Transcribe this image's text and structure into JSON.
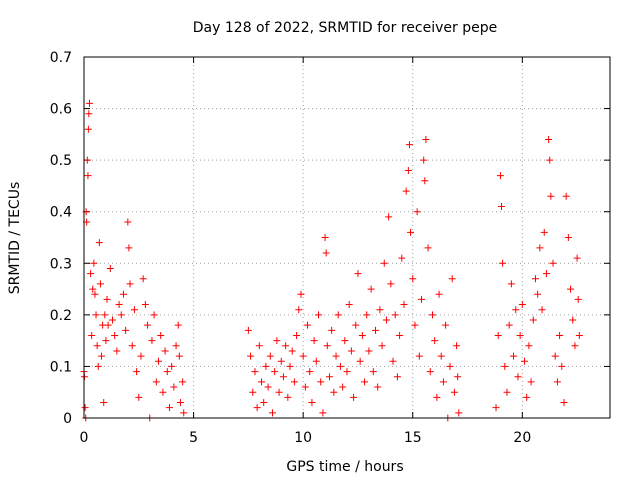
{
  "chart_data": {
    "type": "scatter",
    "title": "Day 128 of 2022, SRMTID for receiver pepe",
    "xlabel": "GPS time / hours",
    "ylabel": "SRMTID / TECUs",
    "xlim": [
      0,
      24
    ],
    "ylim": [
      0,
      0.7
    ],
    "xticks": [
      0,
      5,
      10,
      15,
      20
    ],
    "xtick_labels": [
      "0",
      "5",
      "10",
      "15",
      "20"
    ],
    "yticks": [
      0,
      0.1,
      0.2,
      0.3,
      0.4,
      0.5,
      0.6,
      0.7
    ],
    "ytick_labels": [
      "0",
      "0.1",
      "0.2",
      "0.3",
      "0.4",
      "0.5",
      "0.6",
      "0.7"
    ],
    "grid": true,
    "marker": "+",
    "color": "#ff0000",
    "series": [
      {
        "name": "SRMTID",
        "points": [
          [
            0.0,
            0.09
          ],
          [
            0.02,
            0.08
          ],
          [
            0.05,
            0.02
          ],
          [
            0.08,
            0.0
          ],
          [
            0.1,
            0.4
          ],
          [
            0.12,
            0.38
          ],
          [
            0.15,
            0.5
          ],
          [
            0.18,
            0.47
          ],
          [
            0.2,
            0.56
          ],
          [
            0.22,
            0.59
          ],
          [
            0.25,
            0.61
          ],
          [
            0.3,
            0.28
          ],
          [
            0.35,
            0.16
          ],
          [
            0.4,
            0.25
          ],
          [
            0.45,
            0.3
          ],
          [
            0.5,
            0.24
          ],
          [
            0.55,
            0.2
          ],
          [
            0.6,
            0.14
          ],
          [
            0.65,
            0.1
          ],
          [
            0.7,
            0.34
          ],
          [
            0.75,
            0.26
          ],
          [
            0.8,
            0.12
          ],
          [
            0.85,
            0.18
          ],
          [
            0.9,
            0.03
          ],
          [
            0.95,
            0.2
          ],
          [
            1.0,
            0.15
          ],
          [
            1.05,
            0.23
          ],
          [
            1.1,
            0.18
          ],
          [
            1.2,
            0.29
          ],
          [
            1.3,
            0.19
          ],
          [
            1.4,
            0.16
          ],
          [
            1.5,
            0.13
          ],
          [
            1.6,
            0.22
          ],
          [
            1.7,
            0.2
          ],
          [
            1.8,
            0.24
          ],
          [
            1.9,
            0.17
          ],
          [
            2.0,
            0.38
          ],
          [
            2.05,
            0.33
          ],
          [
            2.1,
            0.26
          ],
          [
            2.2,
            0.14
          ],
          [
            2.3,
            0.21
          ],
          [
            2.4,
            0.09
          ],
          [
            2.5,
            0.04
          ],
          [
            2.6,
            0.12
          ],
          [
            2.7,
            0.27
          ],
          [
            2.8,
            0.22
          ],
          [
            2.9,
            0.18
          ],
          [
            3.0,
            0.0
          ],
          [
            3.1,
            0.15
          ],
          [
            3.2,
            0.2
          ],
          [
            3.3,
            0.07
          ],
          [
            3.4,
            0.11
          ],
          [
            3.5,
            0.16
          ],
          [
            3.6,
            0.05
          ],
          [
            3.7,
            0.13
          ],
          [
            3.8,
            0.09
          ],
          [
            3.9,
            0.02
          ],
          [
            4.0,
            0.1
          ],
          [
            4.1,
            0.06
          ],
          [
            4.2,
            0.14
          ],
          [
            4.3,
            0.18
          ],
          [
            4.35,
            0.12
          ],
          [
            4.4,
            0.03
          ],
          [
            4.5,
            0.07
          ],
          [
            4.55,
            0.01
          ],
          [
            7.5,
            0.17
          ],
          [
            7.6,
            0.12
          ],
          [
            7.7,
            0.05
          ],
          [
            7.8,
            0.09
          ],
          [
            7.9,
            0.02
          ],
          [
            8.0,
            0.14
          ],
          [
            8.1,
            0.07
          ],
          [
            8.2,
            0.03
          ],
          [
            8.3,
            0.1
          ],
          [
            8.4,
            0.06
          ],
          [
            8.5,
            0.12
          ],
          [
            8.6,
            0.01
          ],
          [
            8.7,
            0.09
          ],
          [
            8.8,
            0.15
          ],
          [
            8.9,
            0.05
          ],
          [
            9.0,
            0.11
          ],
          [
            9.1,
            0.08
          ],
          [
            9.2,
            0.14
          ],
          [
            9.3,
            0.04
          ],
          [
            9.4,
            0.1
          ],
          [
            9.5,
            0.13
          ],
          [
            9.6,
            0.07
          ],
          [
            9.7,
            0.16
          ],
          [
            9.8,
            0.21
          ],
          [
            9.9,
            0.24
          ],
          [
            10.0,
            0.12
          ],
          [
            10.1,
            0.06
          ],
          [
            10.2,
            0.18
          ],
          [
            10.3,
            0.09
          ],
          [
            10.4,
            0.03
          ],
          [
            10.5,
            0.15
          ],
          [
            10.6,
            0.11
          ],
          [
            10.7,
            0.2
          ],
          [
            10.8,
            0.07
          ],
          [
            10.9,
            0.01
          ],
          [
            11.0,
            0.35
          ],
          [
            11.05,
            0.32
          ],
          [
            11.1,
            0.14
          ],
          [
            11.2,
            0.08
          ],
          [
            11.3,
            0.17
          ],
          [
            11.4,
            0.05
          ],
          [
            11.5,
            0.12
          ],
          [
            11.6,
            0.2
          ],
          [
            11.7,
            0.1
          ],
          [
            11.8,
            0.06
          ],
          [
            11.9,
            0.15
          ],
          [
            12.0,
            0.09
          ],
          [
            12.1,
            0.22
          ],
          [
            12.2,
            0.13
          ],
          [
            12.3,
            0.04
          ],
          [
            12.4,
            0.18
          ],
          [
            12.5,
            0.28
          ],
          [
            12.6,
            0.11
          ],
          [
            12.7,
            0.16
          ],
          [
            12.8,
            0.07
          ],
          [
            12.9,
            0.2
          ],
          [
            13.0,
            0.13
          ],
          [
            13.1,
            0.25
          ],
          [
            13.2,
            0.09
          ],
          [
            13.3,
            0.17
          ],
          [
            13.4,
            0.06
          ],
          [
            13.5,
            0.21
          ],
          [
            13.6,
            0.14
          ],
          [
            13.7,
            0.3
          ],
          [
            13.8,
            0.19
          ],
          [
            13.9,
            0.39
          ],
          [
            14.0,
            0.26
          ],
          [
            14.1,
            0.11
          ],
          [
            14.2,
            0.2
          ],
          [
            14.3,
            0.08
          ],
          [
            14.4,
            0.16
          ],
          [
            14.5,
            0.31
          ],
          [
            14.6,
            0.22
          ],
          [
            14.7,
            0.44
          ],
          [
            14.8,
            0.48
          ],
          [
            14.85,
            0.53
          ],
          [
            14.9,
            0.36
          ],
          [
            15.0,
            0.27
          ],
          [
            15.1,
            0.18
          ],
          [
            15.2,
            0.4
          ],
          [
            15.3,
            0.12
          ],
          [
            15.4,
            0.23
          ],
          [
            15.5,
            0.5
          ],
          [
            15.55,
            0.46
          ],
          [
            15.6,
            0.54
          ],
          [
            15.7,
            0.33
          ],
          [
            15.8,
            0.09
          ],
          [
            15.9,
            0.2
          ],
          [
            16.0,
            0.15
          ],
          [
            16.1,
            0.04
          ],
          [
            16.2,
            0.24
          ],
          [
            16.3,
            0.12
          ],
          [
            16.4,
            0.07
          ],
          [
            16.5,
            0.18
          ],
          [
            16.6,
            0.0
          ],
          [
            16.7,
            0.1
          ],
          [
            16.8,
            0.27
          ],
          [
            16.9,
            0.05
          ],
          [
            17.0,
            0.14
          ],
          [
            17.05,
            0.08
          ],
          [
            17.1,
            0.01
          ],
          [
            18.8,
            0.02
          ],
          [
            18.9,
            0.16
          ],
          [
            19.0,
            0.47
          ],
          [
            19.05,
            0.41
          ],
          [
            19.1,
            0.3
          ],
          [
            19.2,
            0.1
          ],
          [
            19.3,
            0.05
          ],
          [
            19.4,
            0.18
          ],
          [
            19.5,
            0.26
          ],
          [
            19.6,
            0.12
          ],
          [
            19.7,
            0.21
          ],
          [
            19.8,
            0.08
          ],
          [
            19.9,
            0.16
          ],
          [
            20.0,
            0.22
          ],
          [
            20.1,
            0.11
          ],
          [
            20.2,
            0.04
          ],
          [
            20.3,
            0.14
          ],
          [
            20.4,
            0.07
          ],
          [
            20.5,
            0.19
          ],
          [
            20.6,
            0.27
          ],
          [
            20.7,
            0.24
          ],
          [
            20.8,
            0.33
          ],
          [
            20.9,
            0.21
          ],
          [
            21.0,
            0.36
          ],
          [
            21.1,
            0.28
          ],
          [
            21.2,
            0.54
          ],
          [
            21.25,
            0.5
          ],
          [
            21.3,
            0.43
          ],
          [
            21.4,
            0.3
          ],
          [
            21.5,
            0.12
          ],
          [
            21.6,
            0.07
          ],
          [
            21.7,
            0.16
          ],
          [
            21.8,
            0.1
          ],
          [
            21.9,
            0.03
          ],
          [
            22.0,
            0.43
          ],
          [
            22.1,
            0.35
          ],
          [
            22.2,
            0.25
          ],
          [
            22.3,
            0.19
          ],
          [
            22.4,
            0.14
          ],
          [
            22.5,
            0.31
          ],
          [
            22.55,
            0.23
          ],
          [
            22.6,
            0.16
          ]
        ]
      }
    ]
  }
}
